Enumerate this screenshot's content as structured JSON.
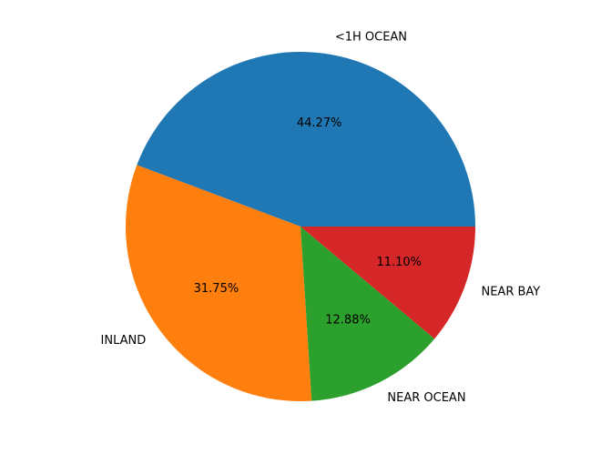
{
  "chart_data": {
    "type": "pie",
    "categories": [
      "<1H OCEAN",
      "INLAND",
      "NEAR OCEAN",
      "NEAR BAY"
    ],
    "values": [
      44.27,
      31.75,
      12.88,
      11.1
    ],
    "percent_labels": [
      "44.27%",
      "31.75%",
      "12.88%",
      "11.10%"
    ],
    "colors": [
      "#1f77b4",
      "#ff7f0e",
      "#2ca02c",
      "#d62728"
    ],
    "start_angle_deg": 0,
    "direction": "counterclockwise",
    "title": "",
    "legend": "none"
  }
}
